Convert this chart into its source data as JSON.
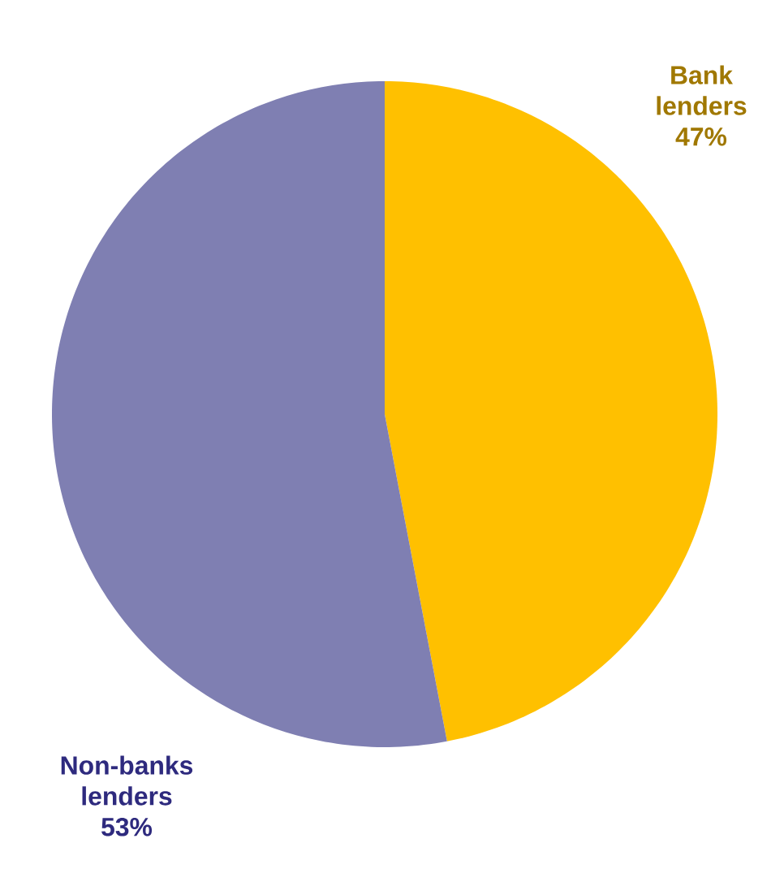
{
  "chart_data": {
    "type": "pie",
    "categories": [
      "Bank lenders",
      "Non-banks lenders"
    ],
    "values": [
      47,
      53
    ],
    "colors": [
      "#ffc000",
      "#7f7fb2"
    ],
    "value_labels": [
      "47%",
      "53%"
    ]
  }
}
